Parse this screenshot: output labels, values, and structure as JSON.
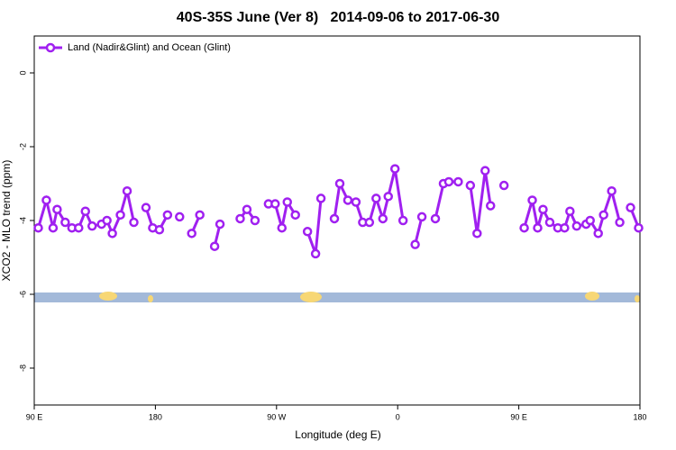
{
  "chart_data": {
    "type": "line",
    "title": "40S-35S June (Ver 8)   2014-09-06 to 2017-06-30",
    "xlabel": "Longitude (deg E)",
    "ylabel": "XCO2 - MLO trend (ppm)",
    "xlim": [
      90,
      540
    ],
    "ylim": [
      -9,
      1
    ],
    "xticks": [
      {
        "value": 90,
        "label": "90 E"
      },
      {
        "value": 180,
        "label": "180"
      },
      {
        "value": 270,
        "label": "90 W"
      },
      {
        "value": 360,
        "label": "0"
      },
      {
        "value": 450,
        "label": "90 E"
      },
      {
        "value": 540,
        "label": "180"
      }
    ],
    "yticks": [
      0,
      -2,
      -4,
      -6,
      -8
    ],
    "legend": "top-left",
    "x": [
      93,
      99,
      104,
      107,
      113,
      118,
      123,
      128,
      133,
      140,
      144,
      148,
      154,
      159,
      164,
      null,
      173,
      178,
      183,
      189,
      null,
      198,
      null,
      207,
      213,
      null,
      224,
      228,
      null,
      243,
      248,
      254,
      null,
      264,
      269,
      274,
      278,
      284,
      null,
      293,
      299,
      303,
      null,
      313,
      317,
      323,
      329,
      334,
      339,
      344,
      349,
      353,
      358,
      364,
      null,
      373,
      378,
      null,
      388,
      394,
      398,
      405,
      null,
      414,
      419,
      425,
      429,
      null,
      439,
      null,
      454,
      460,
      464,
      468,
      473,
      479,
      484,
      488,
      493,
      500,
      503,
      509,
      513,
      519,
      525,
      null,
      533,
      539
    ],
    "series": [
      {
        "name": "Land (Nadir&Glint) and Ocean (Glint)",
        "color": "#a020f0",
        "values": [
          -4.2,
          -3.45,
          -4.2,
          -3.7,
          -4.05,
          -4.2,
          -4.2,
          -3.75,
          -4.15,
          -4.1,
          -4.0,
          -4.35,
          -3.85,
          -3.2,
          -4.05,
          null,
          -3.65,
          -4.2,
          -4.25,
          -3.85,
          null,
          -3.9,
          null,
          -4.35,
          -3.85,
          null,
          -4.7,
          -4.1,
          null,
          -3.95,
          -3.7,
          -4.0,
          null,
          -3.55,
          -3.55,
          -4.2,
          -3.5,
          -3.85,
          null,
          -4.3,
          -4.9,
          -3.4,
          null,
          -3.95,
          -3.0,
          -3.45,
          -3.5,
          -4.05,
          -4.05,
          -3.4,
          -3.95,
          -3.35,
          -2.6,
          -4.0,
          null,
          -4.65,
          -3.9,
          null,
          -3.95,
          -3.0,
          -2.95,
          -2.95,
          null,
          -3.05,
          -4.35,
          -2.65,
          -3.6,
          null,
          -3.05,
          null,
          -4.2,
          -3.45,
          -4.2,
          -3.7,
          -4.05,
          -4.2,
          -4.2,
          -3.75,
          -4.15,
          -4.1,
          -4.0,
          -4.35,
          -3.85,
          -3.2,
          -4.05,
          null,
          -3.65,
          -4.2
        ]
      }
    ]
  }
}
